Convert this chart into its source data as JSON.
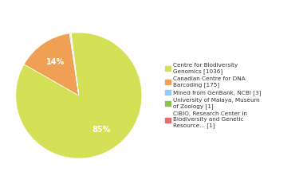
{
  "labels": [
    "Centre for Biodiversity\nGenomics [1036]",
    "Canadian Centre for DNA\nBarcoding [175]",
    "Mined from GenBank, NCBI [3]",
    "University of Malaya, Museum\nof Zoology [1]",
    "CIBIO, Research Center in\nBiodiversity and Genetic\nResource... [1]"
  ],
  "values": [
    1036,
    175,
    3,
    1,
    1
  ],
  "colors": [
    "#d4e157",
    "#f0a055",
    "#90caf9",
    "#8bc34a",
    "#e07070"
  ],
  "background_color": "#ffffff",
  "text_color": "#ffffff",
  "legend_text_color": "#333333",
  "startangle": 97,
  "pct_threshold": 0.5
}
